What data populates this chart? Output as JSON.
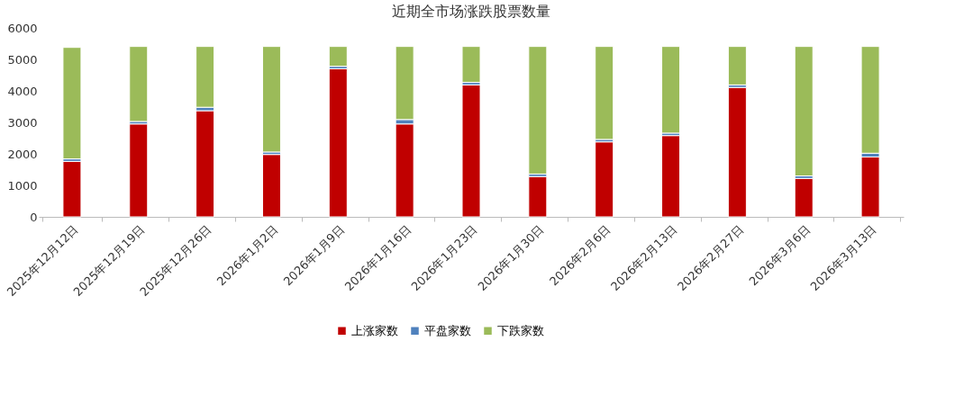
{
  "chart_data": {
    "type": "bar",
    "title": "近期全市场涨跌股票数量",
    "stacked": true,
    "categories": [
      "2025年12月12日",
      "2025年12月19日",
      "2025年12月26日",
      "2026年1月2日",
      "2026年1月9日",
      "2026年1月16日",
      "2026年1月23日",
      "2026年1月30日",
      "2026年2月6日",
      "2026年2月13日",
      "2026年2月27日",
      "2026年3月6日",
      "2026年3月13日"
    ],
    "series": [
      {
        "name": "上涨家数",
        "color": "#c00000",
        "values": [
          1760,
          2950,
          3370,
          1980,
          4700,
          2950,
          4190,
          1280,
          2380,
          2580,
          4110,
          1220,
          1900
        ]
      },
      {
        "name": "平盘家数",
        "color": "#4f81bd",
        "values": [
          80,
          80,
          110,
          80,
          80,
          140,
          80,
          80,
          80,
          80,
          80,
          80,
          120
        ]
      },
      {
        "name": "下跌家数",
        "color": "#9bbb59",
        "values": [
          3540,
          2380,
          1930,
          3350,
          630,
          2320,
          1140,
          4050,
          2950,
          2750,
          1220,
          4110,
          3390
        ]
      }
    ],
    "ylim": [
      0,
      6000
    ],
    "yticks": [
      0,
      1000,
      2000,
      3000,
      4000,
      5000,
      6000
    ],
    "grid": false,
    "legend": "bottom"
  }
}
